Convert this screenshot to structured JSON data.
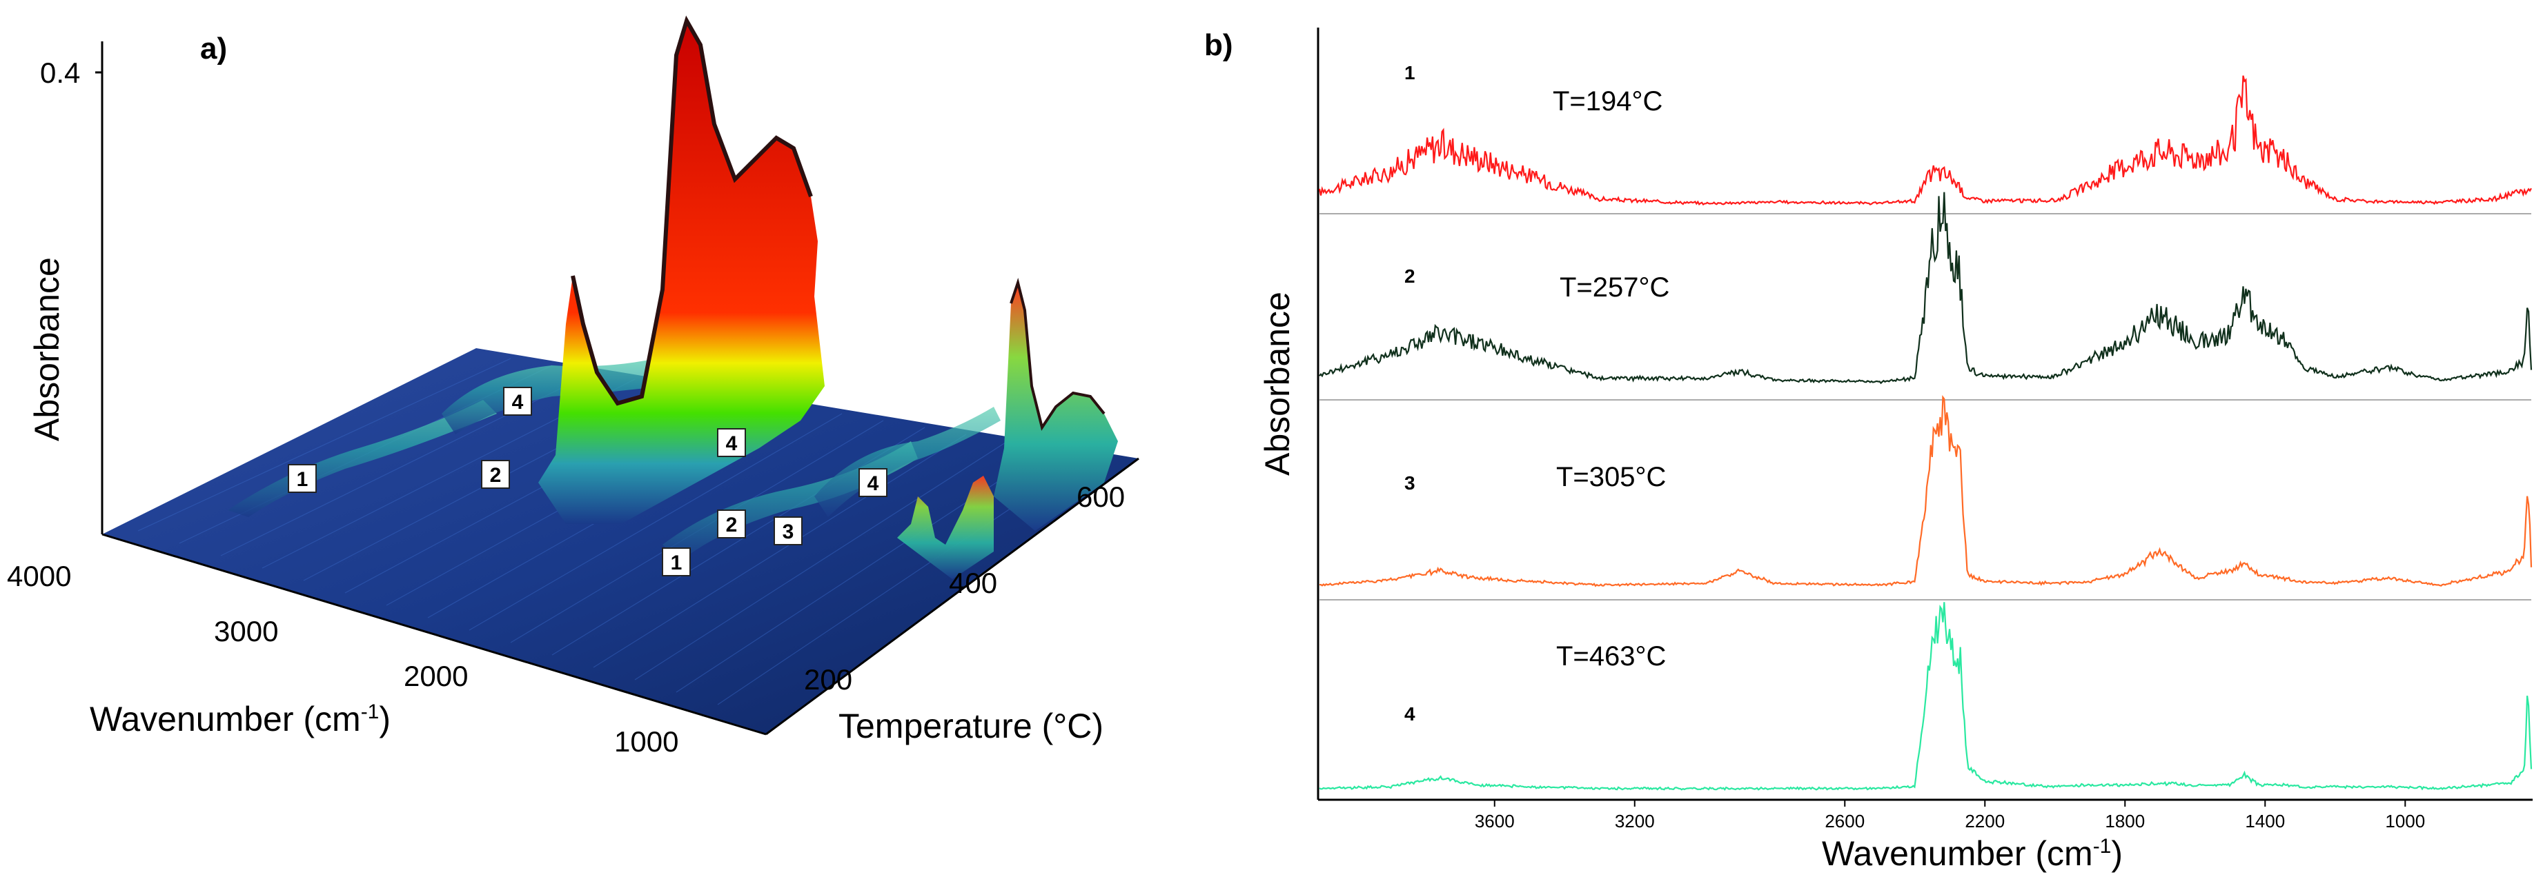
{
  "chart_data": [
    {
      "type": "surface3d",
      "panel": "a)",
      "zlabel": "Absorbance",
      "z_tick": "0.4",
      "xlabel": "Wavenumber (cm",
      "xlabel_sup": "-1",
      "xlabel_end": ")",
      "x_ticks": [
        "4000",
        "3000",
        "2000",
        "1000"
      ],
      "ylabel": "Temperature (°C)",
      "y_ticks": [
        "200",
        "400",
        "600"
      ],
      "peak_labels": [
        "1",
        "4",
        "2",
        "4",
        "2",
        "3",
        "1",
        "4"
      ]
    },
    {
      "type": "line",
      "panel": "b)",
      "ylabel": "Absorbance",
      "xlabel": "Wavenumber (cm",
      "xlabel_sup": "-1",
      "xlabel_end": ")",
      "x_range": [
        4100,
        640
      ],
      "x_ticks": [
        "3600",
        "3200",
        "2600",
        "2200",
        "1800",
        "1400",
        "1000"
      ],
      "series": [
        {
          "name": "1",
          "temperature_label": "T=194°C",
          "color": "#ff1a1a",
          "x": [
            4100,
            3900,
            3760,
            3650,
            3500,
            3300,
            3000,
            2800,
            2500,
            2400,
            2350,
            2300,
            2250,
            2200,
            2000,
            1900,
            1800,
            1700,
            1600,
            1500,
            1460,
            1420,
            1350,
            1300,
            1200,
            1050,
            900,
            750,
            640
          ],
          "y": [
            0.1,
            0.25,
            0.45,
            0.35,
            0.22,
            0.05,
            0.02,
            0.03,
            0.02,
            0.04,
            0.25,
            0.22,
            0.06,
            0.04,
            0.04,
            0.15,
            0.3,
            0.4,
            0.35,
            0.4,
            0.8,
            0.42,
            0.35,
            0.2,
            0.05,
            0.03,
            0.03,
            0.05,
            0.12
          ]
        },
        {
          "name": "2",
          "temperature_label": "T=257°C",
          "color": "#10301c",
          "x": [
            4100,
            3900,
            3760,
            3650,
            3500,
            3300,
            3000,
            2900,
            2800,
            2500,
            2400,
            2350,
            2320,
            2300,
            2270,
            2250,
            2200,
            2000,
            1900,
            1800,
            1700,
            1600,
            1500,
            1460,
            1420,
            1350,
            1300,
            1200,
            1050,
            900,
            700,
            660,
            650,
            640
          ],
          "y": [
            0.06,
            0.18,
            0.3,
            0.25,
            0.15,
            0.04,
            0.04,
            0.08,
            0.03,
            0.02,
            0.04,
            0.8,
            1.0,
            0.82,
            0.6,
            0.1,
            0.05,
            0.05,
            0.15,
            0.25,
            0.42,
            0.25,
            0.3,
            0.55,
            0.35,
            0.28,
            0.12,
            0.05,
            0.1,
            0.03,
            0.08,
            0.15,
            0.55,
            0.1
          ]
        },
        {
          "name": "3",
          "temperature_label": "T=305°C",
          "color": "#ff6a26",
          "x": [
            4100,
            3900,
            3760,
            3650,
            3500,
            3300,
            3000,
            2900,
            2800,
            2500,
            2400,
            2350,
            2320,
            2300,
            2270,
            2250,
            2200,
            2000,
            1900,
            1800,
            1700,
            1600,
            1500,
            1460,
            1420,
            1350,
            1300,
            1200,
            1050,
            900,
            700,
            660,
            650,
            640
          ],
          "y": [
            0.02,
            0.05,
            0.1,
            0.06,
            0.04,
            0.02,
            0.03,
            0.1,
            0.03,
            0.02,
            0.04,
            0.8,
            1.0,
            0.85,
            0.7,
            0.08,
            0.04,
            0.03,
            0.04,
            0.08,
            0.22,
            0.06,
            0.1,
            0.15,
            0.08,
            0.06,
            0.04,
            0.03,
            0.06,
            0.02,
            0.1,
            0.2,
            0.65,
            0.12
          ]
        },
        {
          "name": "4",
          "temperature_label": "T=463°C",
          "color": "#2ae8a0",
          "x": [
            4100,
            3900,
            3760,
            3650,
            3500,
            3300,
            3000,
            2800,
            2500,
            2400,
            2350,
            2320,
            2300,
            2270,
            2250,
            2200,
            2000,
            1900,
            1800,
            1700,
            1600,
            1500,
            1460,
            1420,
            1350,
            1300,
            1200,
            1050,
            900,
            700,
            660,
            650,
            640
          ],
          "y": [
            0.02,
            0.03,
            0.08,
            0.04,
            0.03,
            0.02,
            0.02,
            0.02,
            0.02,
            0.03,
            0.85,
            1.0,
            0.85,
            0.75,
            0.15,
            0.06,
            0.03,
            0.04,
            0.04,
            0.05,
            0.04,
            0.04,
            0.1,
            0.04,
            0.04,
            0.03,
            0.03,
            0.03,
            0.02,
            0.05,
            0.12,
            0.55,
            0.12
          ]
        }
      ]
    }
  ]
}
